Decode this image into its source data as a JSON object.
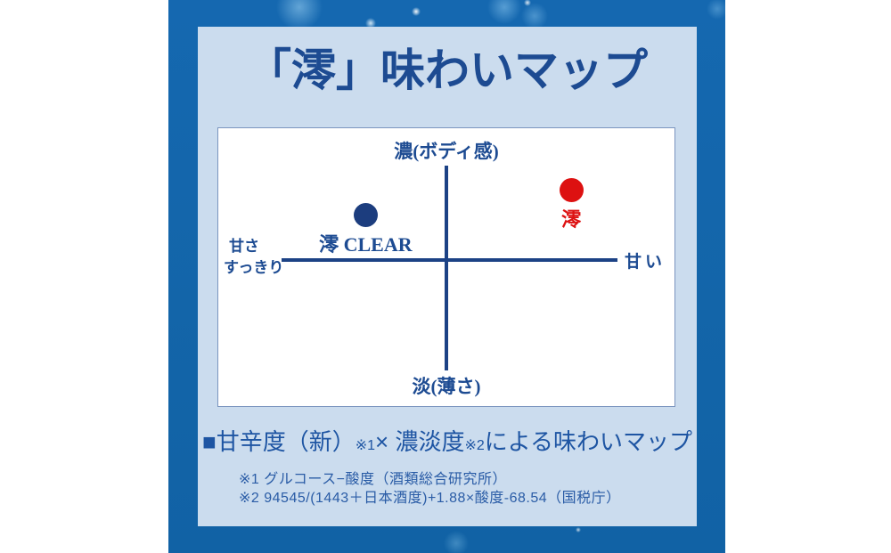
{
  "title": "「澪」味わいマップ",
  "chart_data": {
    "type": "scatter",
    "title": "「澪」味わいマップ",
    "subtitle": "■甘辛度（新）※1× 濃淡度※2による味わいマップ",
    "axes": {
      "top": "濃(ボディ感)",
      "bottom": "淡(薄さ)",
      "left_line1": "甘さ",
      "left_line2": "すっきり",
      "right": "甘い"
    },
    "xlim": [
      -1,
      1
    ],
    "ylim": [
      -1,
      1
    ],
    "grid": false,
    "legend": "none",
    "points": [
      {
        "name": "澪 CLEAR",
        "x": -0.49,
        "y": 0.48,
        "color": "#1c3d7e",
        "label_color": "#1d4b92"
      },
      {
        "name": "澪",
        "x": 0.73,
        "y": 0.75,
        "color": "#dd1111",
        "label_color": "#dd1111"
      }
    ]
  },
  "subtitle": {
    "parts": [
      "■甘辛度（新）",
      "※1",
      "× 濃淡度",
      "※2",
      "による味わいマップ"
    ]
  },
  "footnotes": [
    "※1 グルコース−酸度（酒類総合研究所）",
    "※2 94545/(1443＋日本酒度)+1.88×酸度-68.54（国税庁）"
  ],
  "colors": {
    "background_blue": "#1365a9",
    "panel_blue": "#cbdcee",
    "title_navy": "#1d4b92",
    "axis_navy": "#1c4285",
    "subtitle_blue": "#1e55a3",
    "footnote_blue": "#2a5ca6",
    "mio_clear_dot": "#1c3d7e",
    "mio_dot_red": "#dd1111"
  }
}
